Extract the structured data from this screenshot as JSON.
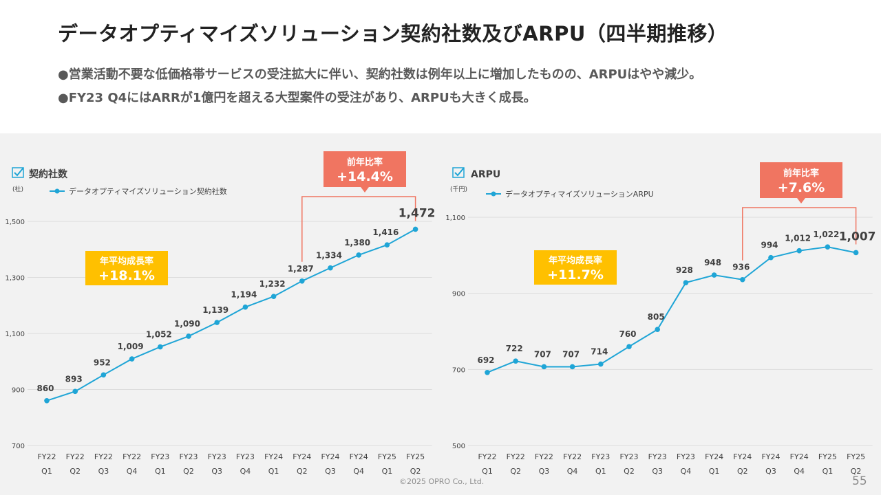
{
  "page": {
    "title": "データオプティマイズソリューション契約社数及びARPU（四半期推移）",
    "bullets": [
      "●営業活動不要な低価格帯サービスの受注拡大に伴い、契約社数は例年以上に増加したものの、ARPUはやや減少。",
      "●FY23 Q4にはARRが1億円を超える大型案件の受注があり、ARPUも大きく成長。"
    ],
    "footer": "©2025 OPRO Co., Ltd.",
    "page_number": "55"
  },
  "colors": {
    "line": "#1fa5d6",
    "callout": "#f07561",
    "cagr_box": "#ffc000",
    "grid": "#dcdcdc",
    "panel": "#f2f2f2"
  },
  "chart_data": [
    {
      "type": "line",
      "title": "契約社数",
      "unit": "(社)",
      "legend": "データオプティマイズソリューション契約社数",
      "categories": [
        [
          "FY22",
          "Q1"
        ],
        [
          "FY22",
          "Q2"
        ],
        [
          "FY22",
          "Q3"
        ],
        [
          "FY22",
          "Q4"
        ],
        [
          "FY23",
          "Q1"
        ],
        [
          "FY23",
          "Q2"
        ],
        [
          "FY23",
          "Q3"
        ],
        [
          "FY23",
          "Q4"
        ],
        [
          "FY24",
          "Q1"
        ],
        [
          "FY24",
          "Q2"
        ],
        [
          "FY24",
          "Q3"
        ],
        [
          "FY24",
          "Q4"
        ],
        [
          "FY25",
          "Q1"
        ],
        [
          "FY25",
          "Q2"
        ]
      ],
      "values": [
        860,
        893,
        952,
        1009,
        1052,
        1090,
        1139,
        1194,
        1232,
        1287,
        1334,
        1380,
        1416,
        1472
      ],
      "value_labels": [
        "860",
        "893",
        "952",
        "1,009",
        "1,052",
        "1,090",
        "1,139",
        "1,194",
        "1,232",
        "1,287",
        "1,334",
        "1,380",
        "1,416",
        "1,472"
      ],
      "ylim": [
        700,
        1500
      ],
      "yticks": [
        700,
        900,
        1100,
        1300,
        1500
      ],
      "ytick_labels": [
        "700",
        "900",
        "1,100",
        "1,300",
        "1,500"
      ],
      "cagr_label": "年平均成長率",
      "cagr_value": "+18.1%",
      "yoy_label": "前年比率",
      "yoy_value": "+14.4%",
      "yoy_from_index": 9,
      "yoy_to_index": 13
    },
    {
      "type": "line",
      "title": "ARPU",
      "unit": "(千円)",
      "legend": "データオプティマイズソリューションARPU",
      "categories": [
        [
          "FY22",
          "Q1"
        ],
        [
          "FY22",
          "Q2"
        ],
        [
          "FY22",
          "Q3"
        ],
        [
          "FY22",
          "Q4"
        ],
        [
          "FY23",
          "Q1"
        ],
        [
          "FY23",
          "Q2"
        ],
        [
          "FY23",
          "Q3"
        ],
        [
          "FY23",
          "Q4"
        ],
        [
          "FY24",
          "Q1"
        ],
        [
          "FY24",
          "Q2"
        ],
        [
          "FY24",
          "Q3"
        ],
        [
          "FY24",
          "Q4"
        ],
        [
          "FY25",
          "Q1"
        ],
        [
          "FY25",
          "Q2"
        ]
      ],
      "values": [
        692,
        722,
        707,
        707,
        714,
        760,
        805,
        928,
        948,
        936,
        994,
        1012,
        1022,
        1007
      ],
      "value_labels": [
        "692",
        "722",
        "707",
        "707",
        "714",
        "760",
        "805",
        "928",
        "948",
        "936",
        "994",
        "1,012",
        "1,022",
        "1,007"
      ],
      "ylim": [
        500,
        1100
      ],
      "yticks": [
        500,
        700,
        900,
        1100
      ],
      "ytick_labels": [
        "500",
        "700",
        "900",
        "1,100"
      ],
      "cagr_label": "年平均成長率",
      "cagr_value": "+11.7%",
      "yoy_label": "前年比率",
      "yoy_value": "+7.6%",
      "yoy_from_index": 9,
      "yoy_to_index": 13
    }
  ]
}
